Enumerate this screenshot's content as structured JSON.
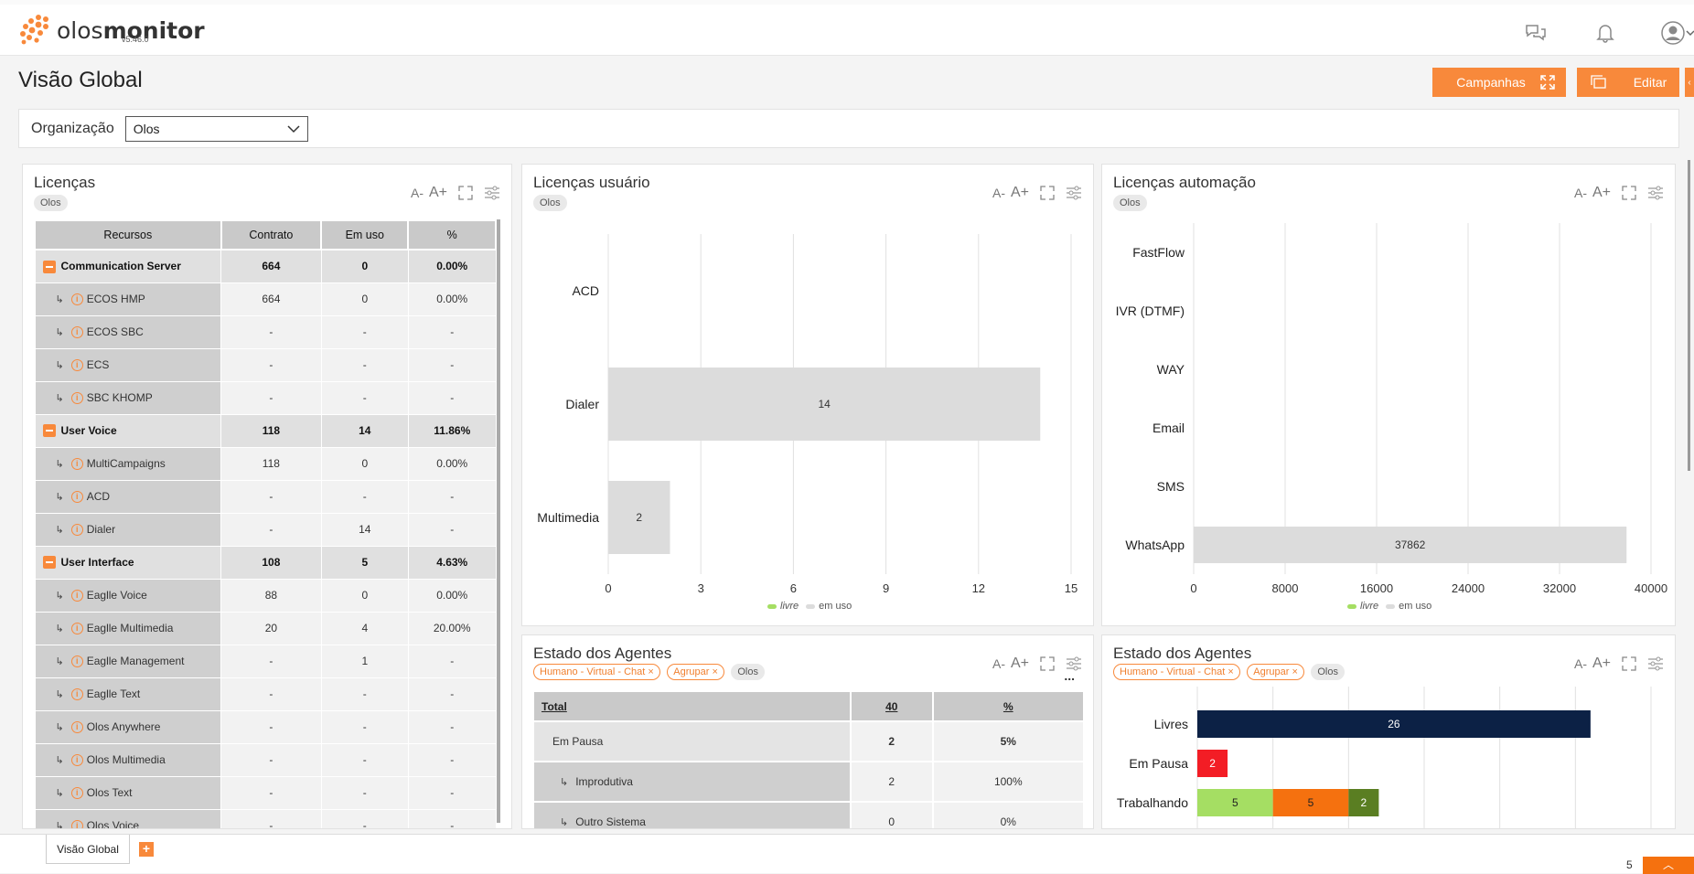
{
  "app": {
    "name_light": "olos",
    "name_bold": "monitor",
    "version": "v5.46.0"
  },
  "colors": {
    "accent": "#f8893b",
    "navy": "#0c2145",
    "red": "#f31d25",
    "green": "#a5de63",
    "orange": "#f5710f",
    "dark_green": "#5a7e22"
  },
  "page": {
    "title": "Visão Global"
  },
  "toolbar": {
    "campanhas_label": "Campanhas",
    "editar_label": "Editar"
  },
  "filter": {
    "label": "Organização",
    "value": "Olos"
  },
  "font_controls": {
    "decrease": "A-",
    "increase": "A+"
  },
  "licencas": {
    "title": "Licenças",
    "tag": "Olos",
    "columns": [
      "Recursos",
      "Contrato",
      "Em uso",
      "%"
    ],
    "groups": [
      {
        "name": "Communication Server",
        "contrato": "664",
        "em_uso": "0",
        "pct": "0.00%",
        "items": [
          {
            "name": "ECOS HMP",
            "contrato": "664",
            "em_uso": "0",
            "pct": "0.00%"
          },
          {
            "name": "ECOS SBC",
            "contrato": "-",
            "em_uso": "-",
            "pct": "-"
          },
          {
            "name": "ECS",
            "contrato": "-",
            "em_uso": "-",
            "pct": "-"
          },
          {
            "name": "SBC KHOMP",
            "contrato": "-",
            "em_uso": "-",
            "pct": "-"
          }
        ]
      },
      {
        "name": "User Voice",
        "contrato": "118",
        "em_uso": "14",
        "pct": "11.86%",
        "items": [
          {
            "name": "MultiCampaigns",
            "contrato": "118",
            "em_uso": "0",
            "pct": "0.00%"
          },
          {
            "name": "ACD",
            "contrato": "-",
            "em_uso": "-",
            "pct": "-"
          },
          {
            "name": "Dialer",
            "contrato": "-",
            "em_uso": "14",
            "pct": "-"
          }
        ]
      },
      {
        "name": "User Interface",
        "contrato": "108",
        "em_uso": "5",
        "pct": "4.63%",
        "items": [
          {
            "name": "Eaglle Voice",
            "contrato": "88",
            "em_uso": "0",
            "pct": "0.00%"
          },
          {
            "name": "Eaglle Multimedia",
            "contrato": "20",
            "em_uso": "4",
            "pct": "20.00%"
          },
          {
            "name": "Eaglle Management",
            "contrato": "-",
            "em_uso": "1",
            "pct": "-"
          },
          {
            "name": "Eaglle Text",
            "contrato": "-",
            "em_uso": "-",
            "pct": "-"
          },
          {
            "name": "Olos Anywhere",
            "contrato": "-",
            "em_uso": "-",
            "pct": "-"
          },
          {
            "name": "Olos Multimedia",
            "contrato": "-",
            "em_uso": "-",
            "pct": "-"
          },
          {
            "name": "Olos Text",
            "contrato": "-",
            "em_uso": "-",
            "pct": "-"
          },
          {
            "name": "Olos Voice",
            "contrato": "-",
            "em_uso": "-",
            "pct": "-"
          }
        ]
      }
    ]
  },
  "chart_data": [
    {
      "type": "bar",
      "orientation": "horizontal",
      "title": "Licenças usuário",
      "tag": "Olos",
      "categories": [
        "ACD",
        "Dialer",
        "Multimedia"
      ],
      "series": [
        {
          "name": "em uso",
          "values": [
            0,
            14,
            2
          ],
          "color": "#dcdcdc"
        }
      ],
      "xlim": [
        0,
        15
      ],
      "xticks": [
        "0",
        "3",
        "6",
        "9",
        "12",
        "15"
      ],
      "data_labels": [
        "",
        "14",
        "2"
      ],
      "legend": [
        "livre",
        "em uso"
      ],
      "legend_placement": "bottom",
      "grid": true
    },
    {
      "type": "bar",
      "orientation": "horizontal",
      "title": "Licenças automação",
      "tag": "Olos",
      "categories": [
        "FastFlow",
        "IVR (DTMF)",
        "WAY",
        "Email",
        "SMS",
        "WhatsApp"
      ],
      "series": [
        {
          "name": "em uso",
          "values": [
            0,
            0,
            0,
            0,
            0,
            37862
          ],
          "color": "#dcdcdc"
        }
      ],
      "xlim": [
        0,
        40000
      ],
      "xticks": [
        "0",
        "8000",
        "16000",
        "24000",
        "32000",
        "40000"
      ],
      "data_labels": [
        "",
        "",
        "",
        "",
        "",
        "37862"
      ],
      "legend": [
        "livre",
        "em uso"
      ],
      "legend_placement": "bottom",
      "grid": true
    },
    {
      "type": "bar",
      "orientation": "horizontal",
      "stacked": true,
      "title": "Estado dos Agentes",
      "tags": [
        "Humano - Virtual - Chat",
        "Agrupar",
        "Olos"
      ],
      "categories": [
        "Livres",
        "Em Pausa",
        "Trabalhando"
      ],
      "segments": [
        [
          {
            "value": 26,
            "color": "#0c2145"
          }
        ],
        [
          {
            "value": 2,
            "color": "#f31d25"
          }
        ],
        [
          {
            "value": 5,
            "color": "#a5de63"
          },
          {
            "value": 5,
            "color": "#f5710f"
          },
          {
            "value": 2,
            "color": "#5a7e22"
          }
        ]
      ],
      "xlim": [
        0,
        30
      ],
      "grid": true
    }
  ],
  "agentes_table": {
    "title": "Estado dos Agentes",
    "tags": [
      "Humano - Virtual - Chat",
      "Agrupar",
      "Olos"
    ],
    "more": "...",
    "header": [
      "Total",
      "40",
      "%"
    ],
    "rows": [
      {
        "label": "Em Pausa",
        "value": "2",
        "pct": "5%"
      },
      {
        "label": "Improdutiva",
        "value": "2",
        "pct": "100%"
      },
      {
        "label": "Outro Sistema",
        "value": "0",
        "pct": "0%"
      }
    ]
  },
  "bottom": {
    "tab_label": "Visão Global",
    "page_count": "5"
  }
}
